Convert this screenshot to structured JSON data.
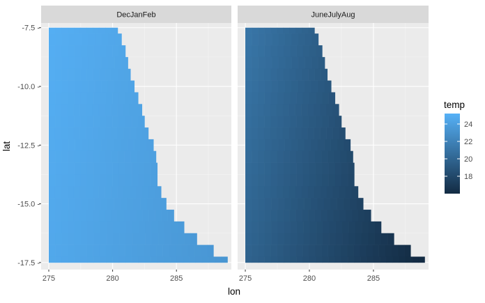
{
  "chart_data": {
    "type": "heatmap",
    "facets": [
      {
        "name": "DecJanFeb",
        "temp_at_start": 25.0,
        "temp_at_end": 23.3
      },
      {
        "name": "JuneJulyAug",
        "temp_at_start": 21.2,
        "temp_at_end": 15.8
      }
    ],
    "xlabel": "lon",
    "ylabel": "lat",
    "xlim": [
      274.4,
      289.3
    ],
    "ylim": [
      -17.8,
      -7.3
    ],
    "x_ticks": [
      275,
      280,
      285
    ],
    "x_tick_labels": [
      "275",
      "280",
      "285"
    ],
    "y_ticks": [
      -7.5,
      -10.0,
      -12.5,
      -15.0,
      -17.5
    ],
    "y_tick_labels": [
      "-7.5 -",
      "-10.0 -",
      "-12.5 -",
      "-15.0 -",
      "-17.5 -"
    ],
    "lat_range": [
      -17.5,
      -7.5
    ],
    "lon_start": 275,
    "boundary": [
      {
        "lat": -7.5,
        "lon_end": 280.4
      },
      {
        "lat": -8.0,
        "lon_end": 280.7
      },
      {
        "lat": -8.5,
        "lon_end": 281.0
      },
      {
        "lat": -9.0,
        "lon_end": 281.2
      },
      {
        "lat": -9.5,
        "lon_end": 281.4
      },
      {
        "lat": -10.0,
        "lon_end": 281.7
      },
      {
        "lat": -10.5,
        "lon_end": 282.0
      },
      {
        "lat": -11.0,
        "lon_end": 282.3
      },
      {
        "lat": -11.5,
        "lon_end": 282.5
      },
      {
        "lat": -12.0,
        "lon_end": 282.8
      },
      {
        "lat": -12.5,
        "lon_end": 283.2
      },
      {
        "lat": -13.0,
        "lon_end": 283.4
      },
      {
        "lat": -13.5,
        "lon_end": 283.5
      },
      {
        "lat": -14.0,
        "lon_end": 283.5
      },
      {
        "lat": -14.5,
        "lon_end": 283.8
      },
      {
        "lat": -15.0,
        "lon_end": 284.2
      },
      {
        "lat": -15.5,
        "lon_end": 284.8
      },
      {
        "lat": -16.0,
        "lon_end": 285.6
      },
      {
        "lat": -16.5,
        "lon_end": 286.6
      },
      {
        "lat": -17.0,
        "lon_end": 287.9
      },
      {
        "lat": -17.5,
        "lon_end": 289.0
      }
    ],
    "legend": {
      "title": "temp",
      "placement": "right",
      "min": 16.0,
      "max": 25.2,
      "ticks": [
        18,
        20,
        22,
        24
      ],
      "tick_labels": [
        "18",
        "20",
        "22",
        "24"
      ],
      "color_low": "#132b43",
      "color_high": "#56b1f7"
    },
    "grid": true,
    "panel_background": "#ebebeb",
    "strip_background": "#d9d9d9"
  }
}
